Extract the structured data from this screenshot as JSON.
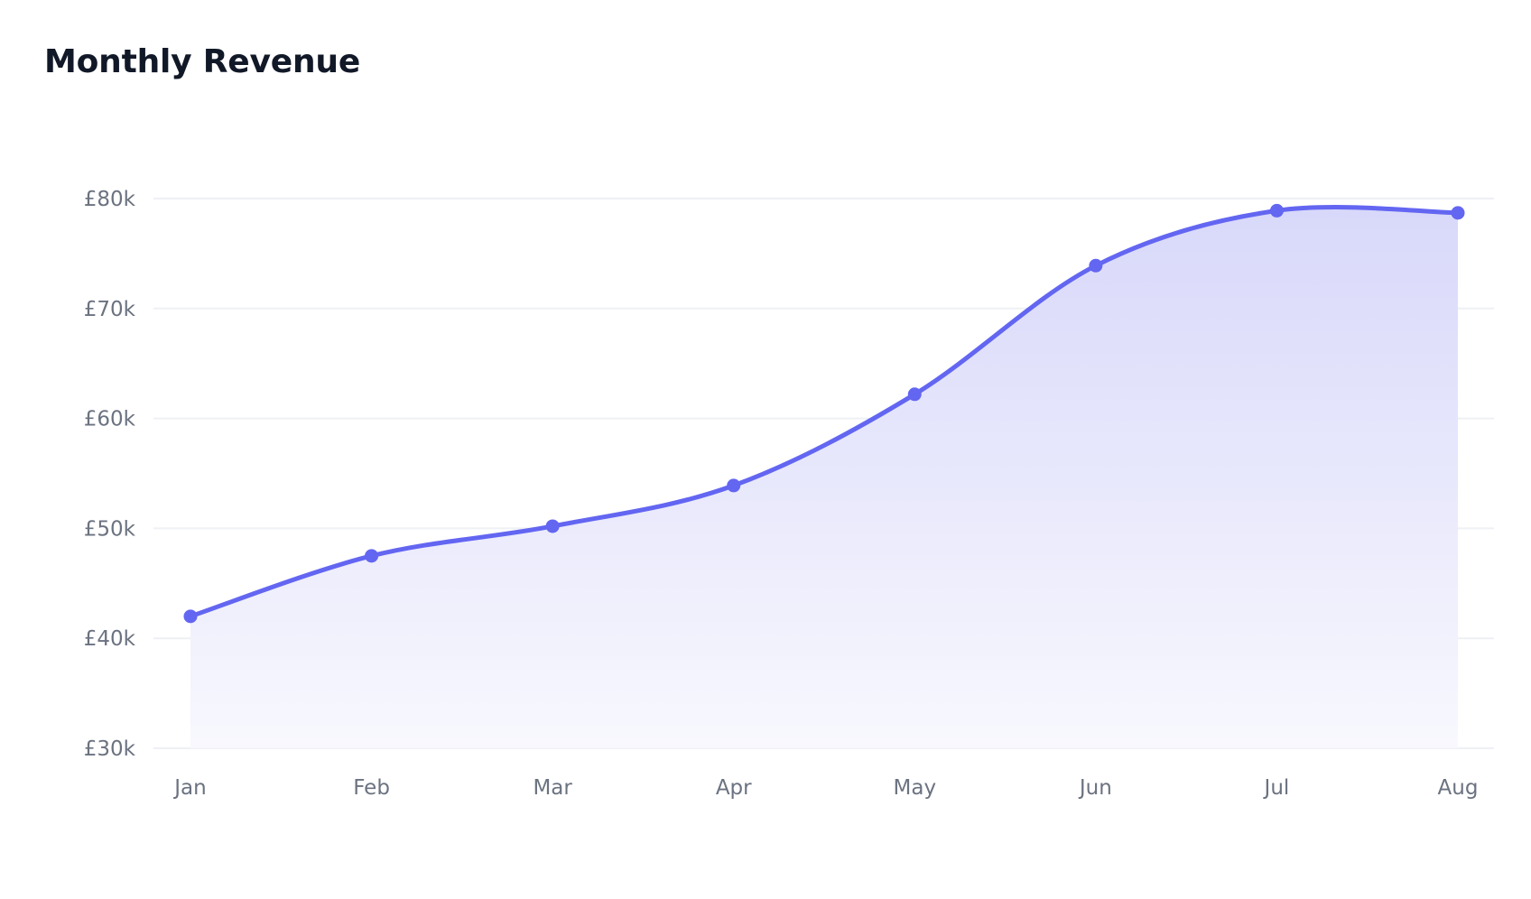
{
  "title": "Monthly Revenue",
  "colors": {
    "line": "#6366f1",
    "area_top": "#d8d8fa",
    "area_bottom": "#f8f8fe",
    "title": "#111827",
    "tick_text": "#6b7280",
    "grid": "#eef0f4"
  },
  "chart_data": {
    "type": "area",
    "title": "Monthly Revenue",
    "xlabel": "",
    "ylabel": "",
    "categories": [
      "Jan",
      "Feb",
      "Mar",
      "Apr",
      "May",
      "Jun",
      "Jul",
      "Aug"
    ],
    "values": [
      42000,
      47500,
      50200,
      53900,
      62200,
      73900,
      78900,
      78700
    ],
    "ylim": [
      30000,
      80000
    ],
    "yticks": [
      30000,
      40000,
      50000,
      60000,
      70000,
      80000
    ],
    "ytick_labels": [
      "£30k",
      "£40k",
      "£50k",
      "£60k",
      "£70k",
      "£80k"
    ],
    "grid": true,
    "legend": "none",
    "curve": "smooth",
    "markers": true
  }
}
